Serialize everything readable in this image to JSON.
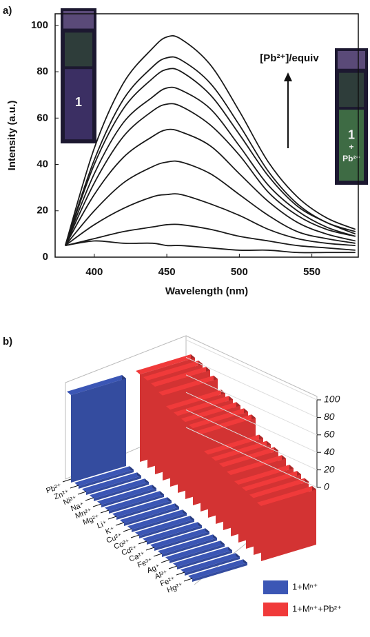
{
  "chart_data": [
    {
      "type": "line",
      "panel_label": "a)",
      "xlabel": "Wavelength (nm)",
      "ylabel": "Intensity (a.u.)",
      "x": [
        380,
        400,
        420,
        440,
        450,
        460,
        480,
        500,
        520,
        540,
        560,
        580
      ],
      "series": [
        {
          "color": "#1a1a1a",
          "values": [
            5,
            47,
            75,
            90,
            95,
            94,
            83,
            63,
            41,
            26,
            17,
            12
          ]
        },
        {
          "color": "#1a1a1a",
          "values": [
            5,
            42,
            68,
            82,
            86,
            85,
            75,
            57,
            37,
            23,
            15,
            11
          ]
        },
        {
          "color": "#1a1a1a",
          "values": [
            5,
            40,
            64,
            77,
            81,
            80,
            70,
            53,
            35,
            22,
            15,
            10
          ]
        },
        {
          "color": "#1a1a1a",
          "values": [
            5,
            36,
            58,
            69,
            73,
            72,
            64,
            48,
            31,
            20,
            13,
            9
          ]
        },
        {
          "color": "#1a1a1a",
          "values": [
            5,
            32,
            52,
            63,
            66,
            65,
            57,
            44,
            28,
            18,
            12,
            9
          ]
        },
        {
          "color": "#1a1a1a",
          "values": [
            5,
            27,
            43,
            52,
            55,
            54,
            48,
            36,
            24,
            15,
            10,
            7
          ]
        },
        {
          "color": "#1a1a1a",
          "values": [
            5,
            20,
            32,
            39,
            41,
            41,
            36,
            27,
            18,
            11,
            8,
            6
          ]
        },
        {
          "color": "#1a1a1a",
          "values": [
            5,
            14,
            21,
            26,
            27,
            27,
            23,
            18,
            12,
            8,
            6,
            5
          ]
        },
        {
          "color": "#1a1a1a",
          "values": [
            5,
            8,
            11,
            13,
            14,
            14,
            12,
            9,
            7,
            5,
            4,
            3
          ]
        },
        {
          "color": "#1a1a1a",
          "values": [
            5,
            7,
            6,
            6,
            5,
            5,
            4,
            3,
            3,
            2,
            2,
            2
          ]
        }
      ],
      "xlim": [
        373,
        582
      ],
      "ylim": [
        0,
        105
      ],
      "xticks": [
        400,
        450,
        500,
        550
      ],
      "yticks": [
        0,
        20,
        40,
        60,
        80,
        100
      ],
      "annotation": "[Pb²⁺]/equiv",
      "insets": [
        {
          "lines": [
            "1"
          ]
        },
        {
          "lines": [
            "1",
            "+",
            "Pb²⁺"
          ]
        }
      ]
    },
    {
      "type": "bar3d",
      "panel_label": "b)",
      "categories": [
        "Pb²⁺",
        "Zn²⁺",
        "Ni²⁺",
        "Na⁺",
        "Mn²⁺",
        "Mg²⁺",
        "Li⁺",
        "K⁺",
        "Cu²⁺",
        "Co²⁺",
        "Cd²⁺",
        "Ca²⁺",
        "Fe³⁺",
        "Ag⁺",
        "Al³⁺",
        "Fe²⁺",
        "Hg²⁺"
      ],
      "series": [
        {
          "name": "1+Mⁿ⁺",
          "color": "#3b56b5",
          "values": [
            100,
            3,
            3,
            3,
            3,
            3,
            3,
            3,
            3,
            3,
            3,
            3,
            3,
            3,
            3,
            3,
            3
          ]
        },
        {
          "name": "1+Mⁿ⁺+Pb²⁺",
          "color": "#f03a3a",
          "values": [
            100,
            100,
            100,
            97,
            88,
            88,
            88,
            88,
            88,
            72,
            72,
            72,
            70,
            66,
            66,
            65,
            63
          ]
        }
      ],
      "zlim": [
        0,
        100
      ],
      "zticks": [
        0,
        20,
        40,
        60,
        80,
        100
      ]
    }
  ]
}
